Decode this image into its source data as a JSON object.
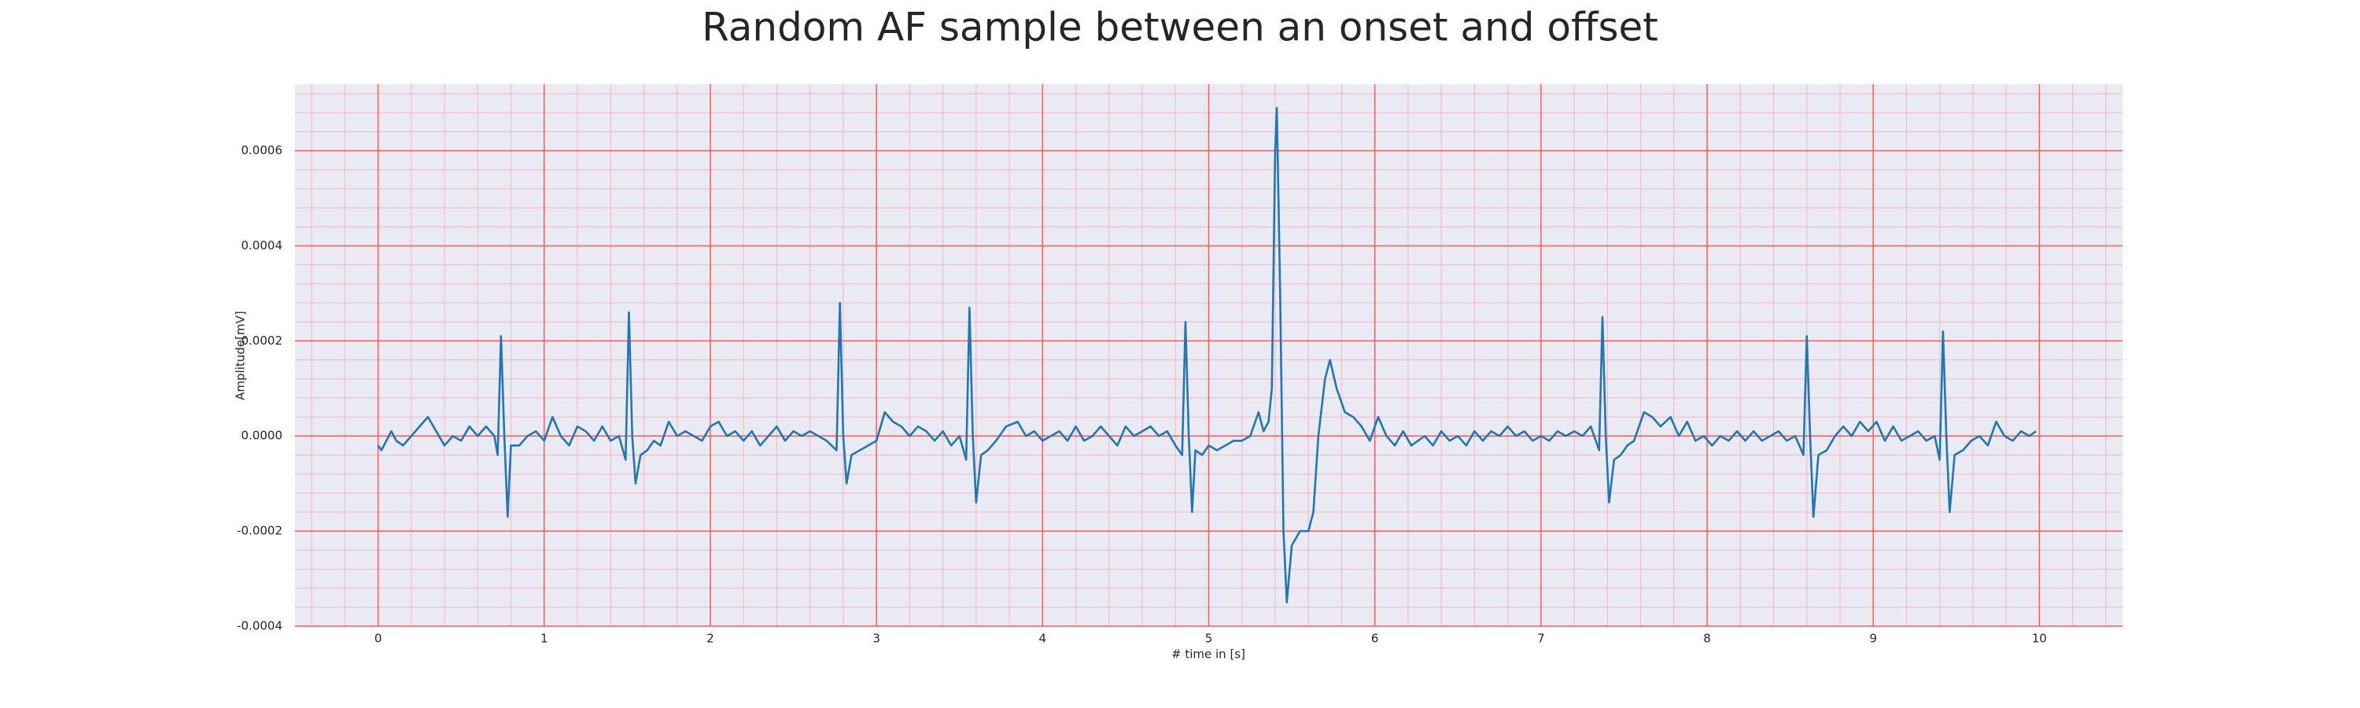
{
  "chart_data": {
    "type": "line",
    "title": "Random AF sample between an onset and offset",
    "xlabel": "# time in [s]",
    "ylabel": "Amplitude[mV]",
    "xlim": [
      -0.5,
      10.5
    ],
    "ylim": [
      -0.0004,
      0.00074
    ],
    "xticks": [
      0,
      1,
      2,
      3,
      4,
      5,
      6,
      7,
      8,
      9,
      10
    ],
    "yticks": [
      -0.0004,
      -0.0002,
      {
        "value": 0,
        "label": "0.0000"
      },
      0.0002,
      0.0004,
      0.0006
    ],
    "grid": true,
    "grid_color": "#ff5a5a",
    "minor_grid": {
      "xstep": 0.2,
      "ystep": 4e-05,
      "color": "#f5b5c4"
    },
    "background": "#eaeaf2",
    "x": [
      0,
      0.02,
      0.05,
      0.08,
      0.11,
      0.15,
      0.2,
      0.25,
      0.3,
      0.35,
      0.4,
      0.45,
      0.5,
      0.55,
      0.6,
      0.65,
      0.7,
      0.72,
      0.74,
      0.76,
      0.78,
      0.8,
      0.85,
      0.9,
      0.95,
      1,
      1.05,
      1.1,
      1.15,
      1.2,
      1.25,
      1.3,
      1.35,
      1.4,
      1.45,
      1.49,
      1.51,
      1.53,
      1.55,
      1.58,
      1.62,
      1.66,
      1.7,
      1.75,
      1.8,
      1.85,
      1.9,
      1.95,
      2,
      2.05,
      2.1,
      2.15,
      2.2,
      2.25,
      2.3,
      2.35,
      2.4,
      2.45,
      2.5,
      2.55,
      2.6,
      2.65,
      2.7,
      2.76,
      2.78,
      2.8,
      2.82,
      2.85,
      2.9,
      2.95,
      3,
      3.05,
      3.1,
      3.15,
      3.2,
      3.25,
      3.3,
      3.35,
      3.4,
      3.45,
      3.5,
      3.54,
      3.56,
      3.58,
      3.6,
      3.63,
      3.67,
      3.72,
      3.78,
      3.85,
      3.9,
      3.95,
      4,
      4.05,
      4.1,
      4.15,
      4.2,
      4.25,
      4.3,
      4.35,
      4.4,
      4.45,
      4.5,
      4.55,
      4.6,
      4.65,
      4.7,
      4.75,
      4.8,
      4.84,
      4.86,
      4.88,
      4.9,
      4.92,
      4.96,
      5,
      5.05,
      5.1,
      5.15,
      5.2,
      5.25,
      5.3,
      5.33,
      5.36,
      5.38,
      5.4,
      5.41,
      5.43,
      5.45,
      5.47,
      5.5,
      5.55,
      5.6,
      5.63,
      5.66,
      5.7,
      5.73,
      5.77,
      5.82,
      5.87,
      5.92,
      5.97,
      6.02,
      6.07,
      6.12,
      6.17,
      6.22,
      6.3,
      6.35,
      6.4,
      6.45,
      6.5,
      6.55,
      6.6,
      6.65,
      6.7,
      6.75,
      6.8,
      6.85,
      6.9,
      6.95,
      7,
      7.05,
      7.1,
      7.15,
      7.2,
      7.25,
      7.3,
      7.35,
      7.37,
      7.39,
      7.41,
      7.44,
      7.48,
      7.52,
      7.56,
      7.62,
      7.67,
      7.72,
      7.78,
      7.83,
      7.88,
      7.93,
      7.98,
      8.03,
      8.08,
      8.13,
      8.18,
      8.23,
      8.28,
      8.33,
      8.38,
      8.43,
      8.48,
      8.53,
      8.58,
      8.6,
      8.62,
      8.64,
      8.67,
      8.72,
      8.77,
      8.82,
      8.87,
      8.92,
      8.97,
      9.02,
      9.07,
      9.12,
      9.17,
      9.22,
      9.27,
      9.32,
      9.37,
      9.4,
      9.42,
      9.44,
      9.46,
      9.49,
      9.54,
      9.59,
      9.64,
      9.69,
      9.74,
      9.79,
      9.84,
      9.89,
      9.94,
      9.98
    ],
    "series": [
      {
        "color": "#1f77b4",
        "values": [
          -2e-05,
          -3e-05,
          -1e-05,
          1e-05,
          -1e-05,
          -2e-05,
          0,
          2e-05,
          4e-05,
          1e-05,
          -2e-05,
          0,
          -1e-05,
          2e-05,
          0,
          2e-05,
          0,
          -4e-05,
          0.00021,
          0,
          -0.00017,
          -2e-05,
          -2e-05,
          0,
          1e-05,
          -1e-05,
          4e-05,
          0,
          -2e-05,
          2e-05,
          1e-05,
          -1e-05,
          2e-05,
          -1e-05,
          0,
          -5e-05,
          0.00026,
          0,
          -0.0001,
          -4e-05,
          -3e-05,
          -1e-05,
          -2e-05,
          3e-05,
          0,
          1e-05,
          0,
          -1e-05,
          2e-05,
          3e-05,
          0,
          1e-05,
          -1e-05,
          1e-05,
          -2e-05,
          0,
          2e-05,
          -1e-05,
          1e-05,
          0,
          1e-05,
          0,
          -1e-05,
          -3e-05,
          0.00028,
          0,
          -0.0001,
          -4e-05,
          -3e-05,
          -2e-05,
          -1e-05,
          5e-05,
          3e-05,
          2e-05,
          0,
          2e-05,
          1e-05,
          -1e-05,
          1e-05,
          -2e-05,
          0,
          -5e-05,
          0.00027,
          0,
          -0.00014,
          -4e-05,
          -3e-05,
          -1e-05,
          2e-05,
          3e-05,
          0,
          1e-05,
          -1e-05,
          0,
          1e-05,
          -1e-05,
          2e-05,
          -1e-05,
          0,
          2e-05,
          0,
          -2e-05,
          2e-05,
          0,
          1e-05,
          2e-05,
          0,
          1e-05,
          -2e-05,
          -4e-05,
          0.00024,
          0,
          -0.00016,
          -3e-05,
          -4e-05,
          -2e-05,
          -3e-05,
          -2e-05,
          -1e-05,
          -1e-05,
          0,
          5e-05,
          1e-05,
          3e-05,
          0.0001,
          0.0006,
          0.00069,
          0.0003,
          -0.0002,
          -0.00035,
          -0.00023,
          -0.0002,
          -0.0002,
          -0.00016,
          0,
          0.00012,
          0.00016,
          0.0001,
          5e-05,
          4e-05,
          2e-05,
          -1e-05,
          4e-05,
          0,
          -2e-05,
          1e-05,
          -2e-05,
          0,
          -2e-05,
          1e-05,
          -1e-05,
          0,
          -2e-05,
          1e-05,
          -1e-05,
          1e-05,
          0,
          2e-05,
          0,
          1e-05,
          -1e-05,
          0,
          -1e-05,
          1e-05,
          0,
          1e-05,
          0,
          2e-05,
          -3e-05,
          0.00025,
          0,
          -0.00014,
          -5e-05,
          -4e-05,
          -2e-05,
          -1e-05,
          5e-05,
          4e-05,
          2e-05,
          4e-05,
          0,
          3e-05,
          -1e-05,
          0,
          -2e-05,
          0,
          -1e-05,
          1e-05,
          -1e-05,
          1e-05,
          -1e-05,
          0,
          1e-05,
          -1e-05,
          0,
          -4e-05,
          0.00021,
          0,
          -0.00017,
          -4e-05,
          -3e-05,
          0,
          2e-05,
          0,
          3e-05,
          1e-05,
          3e-05,
          -1e-05,
          2e-05,
          -1e-05,
          0,
          1e-05,
          -1e-05,
          0,
          -5e-05,
          0.00022,
          0,
          -0.00016,
          -4e-05,
          -3e-05,
          -1e-05,
          0,
          -2e-05,
          3e-05,
          0,
          -1e-05,
          1e-05,
          0,
          1e-05
        ]
      }
    ]
  }
}
